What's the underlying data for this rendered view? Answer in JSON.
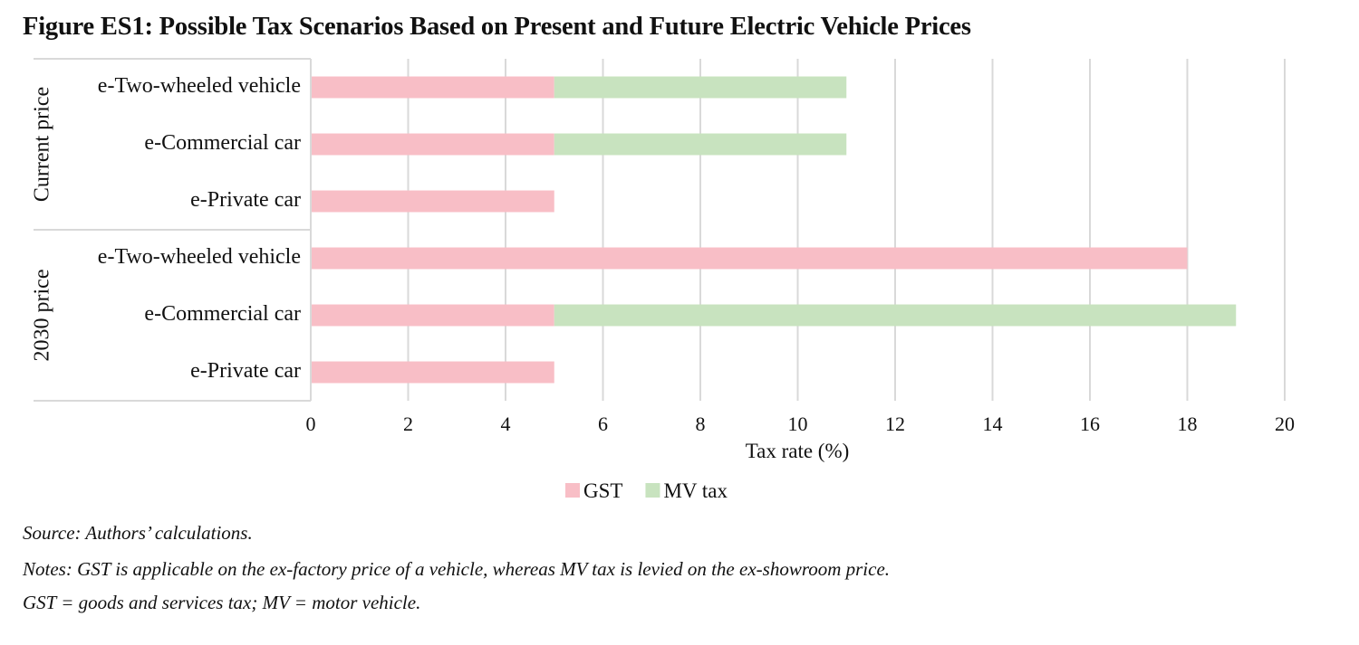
{
  "chart_data": {
    "type": "bar",
    "orientation": "horizontal",
    "stacked": true,
    "title": "Figure ES1: Possible Tax Scenarios Based on Present and Future Electric Vehicle Prices",
    "xlabel": "Tax rate (%)",
    "ylabel": "",
    "xlim": [
      0,
      20
    ],
    "xticks": [
      "0",
      "2",
      "4",
      "6",
      "8",
      "10",
      "12",
      "14",
      "16",
      "18",
      "20"
    ],
    "grid": true,
    "legend_position": "bottom",
    "groups": [
      {
        "label": "Current price",
        "categories": [
          "e-Two-wheeled vehicle",
          "e-Commercial car",
          "e-Private car"
        ]
      },
      {
        "label": "2030 price",
        "categories": [
          "e-Two-wheeled vehicle",
          "e-Commercial car",
          "e-Private car"
        ]
      }
    ],
    "categories": [
      "Current price | e-Two-wheeled vehicle",
      "Current price | e-Commercial car",
      "Current price | e-Private car",
      "2030 price | e-Two-wheeled vehicle",
      "2030 price | e-Commercial car",
      "2030 price | e-Private car"
    ],
    "series": [
      {
        "name": "GST",
        "color": "#f8bec6",
        "values": [
          5,
          5,
          5,
          18,
          5,
          5
        ]
      },
      {
        "name": "MV tax",
        "color": "#c8e3bf",
        "values": [
          6,
          6,
          0,
          0,
          14,
          0
        ]
      }
    ]
  },
  "notes": {
    "source": "Source: Authors’ calculations.",
    "notes_line": "Notes: GST is applicable on the ex-factory price of a vehicle, whereas MV tax is levied on the ex-showroom price.",
    "abbreviations": "GST = goods and services tax; MV = motor vehicle."
  },
  "colors": {
    "gridline": "#d9d9d9",
    "axis": "#d9d9d9",
    "text": "#111111"
  }
}
